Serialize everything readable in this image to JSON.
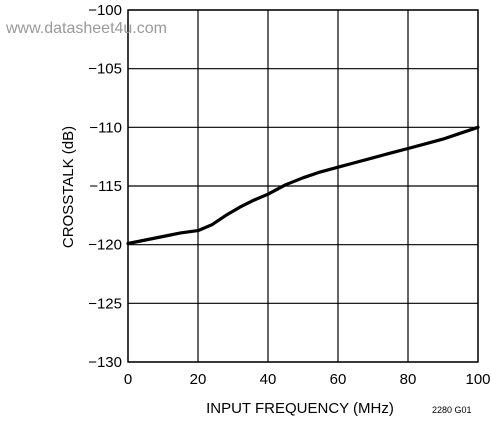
{
  "watermark": "www.datasheet4u.com",
  "figure_code": "2280 G01",
  "colors": {
    "line": "#000000",
    "grid": "#000000",
    "background": "#ffffff",
    "watermark": "#9a9a9a"
  },
  "chart_data": {
    "type": "line",
    "title": "",
    "xlabel": "INPUT FREQUENCY (MHz)",
    "ylabel": "CROSSTALK (dB)",
    "xlim": [
      0,
      100
    ],
    "ylim": [
      -130,
      -100
    ],
    "x_ticks": [
      0,
      20,
      40,
      60,
      80,
      100
    ],
    "y_ticks": [
      -100,
      -105,
      -110,
      -115,
      -120,
      -125,
      -130
    ],
    "x_tick_labels": [
      "0",
      "20",
      "40",
      "60",
      "80",
      "100"
    ],
    "y_tick_labels": [
      "−100",
      "−105",
      "−110",
      "−115",
      "−120",
      "−125",
      "−130"
    ],
    "grid": true,
    "series": [
      {
        "x": [
          0,
          5,
          10,
          15,
          20,
          24,
          28,
          32,
          36,
          40,
          45,
          50,
          55,
          60,
          65,
          70,
          75,
          80,
          85,
          90,
          95,
          100
        ],
        "y": [
          -119.9,
          -119.6,
          -119.3,
          -119.0,
          -118.8,
          -118.3,
          -117.5,
          -116.8,
          -116.2,
          -115.7,
          -114.9,
          -114.3,
          -113.8,
          -113.4,
          -113.0,
          -112.6,
          -112.2,
          -111.8,
          -111.4,
          -111.0,
          -110.5,
          -110.0
        ]
      }
    ]
  }
}
